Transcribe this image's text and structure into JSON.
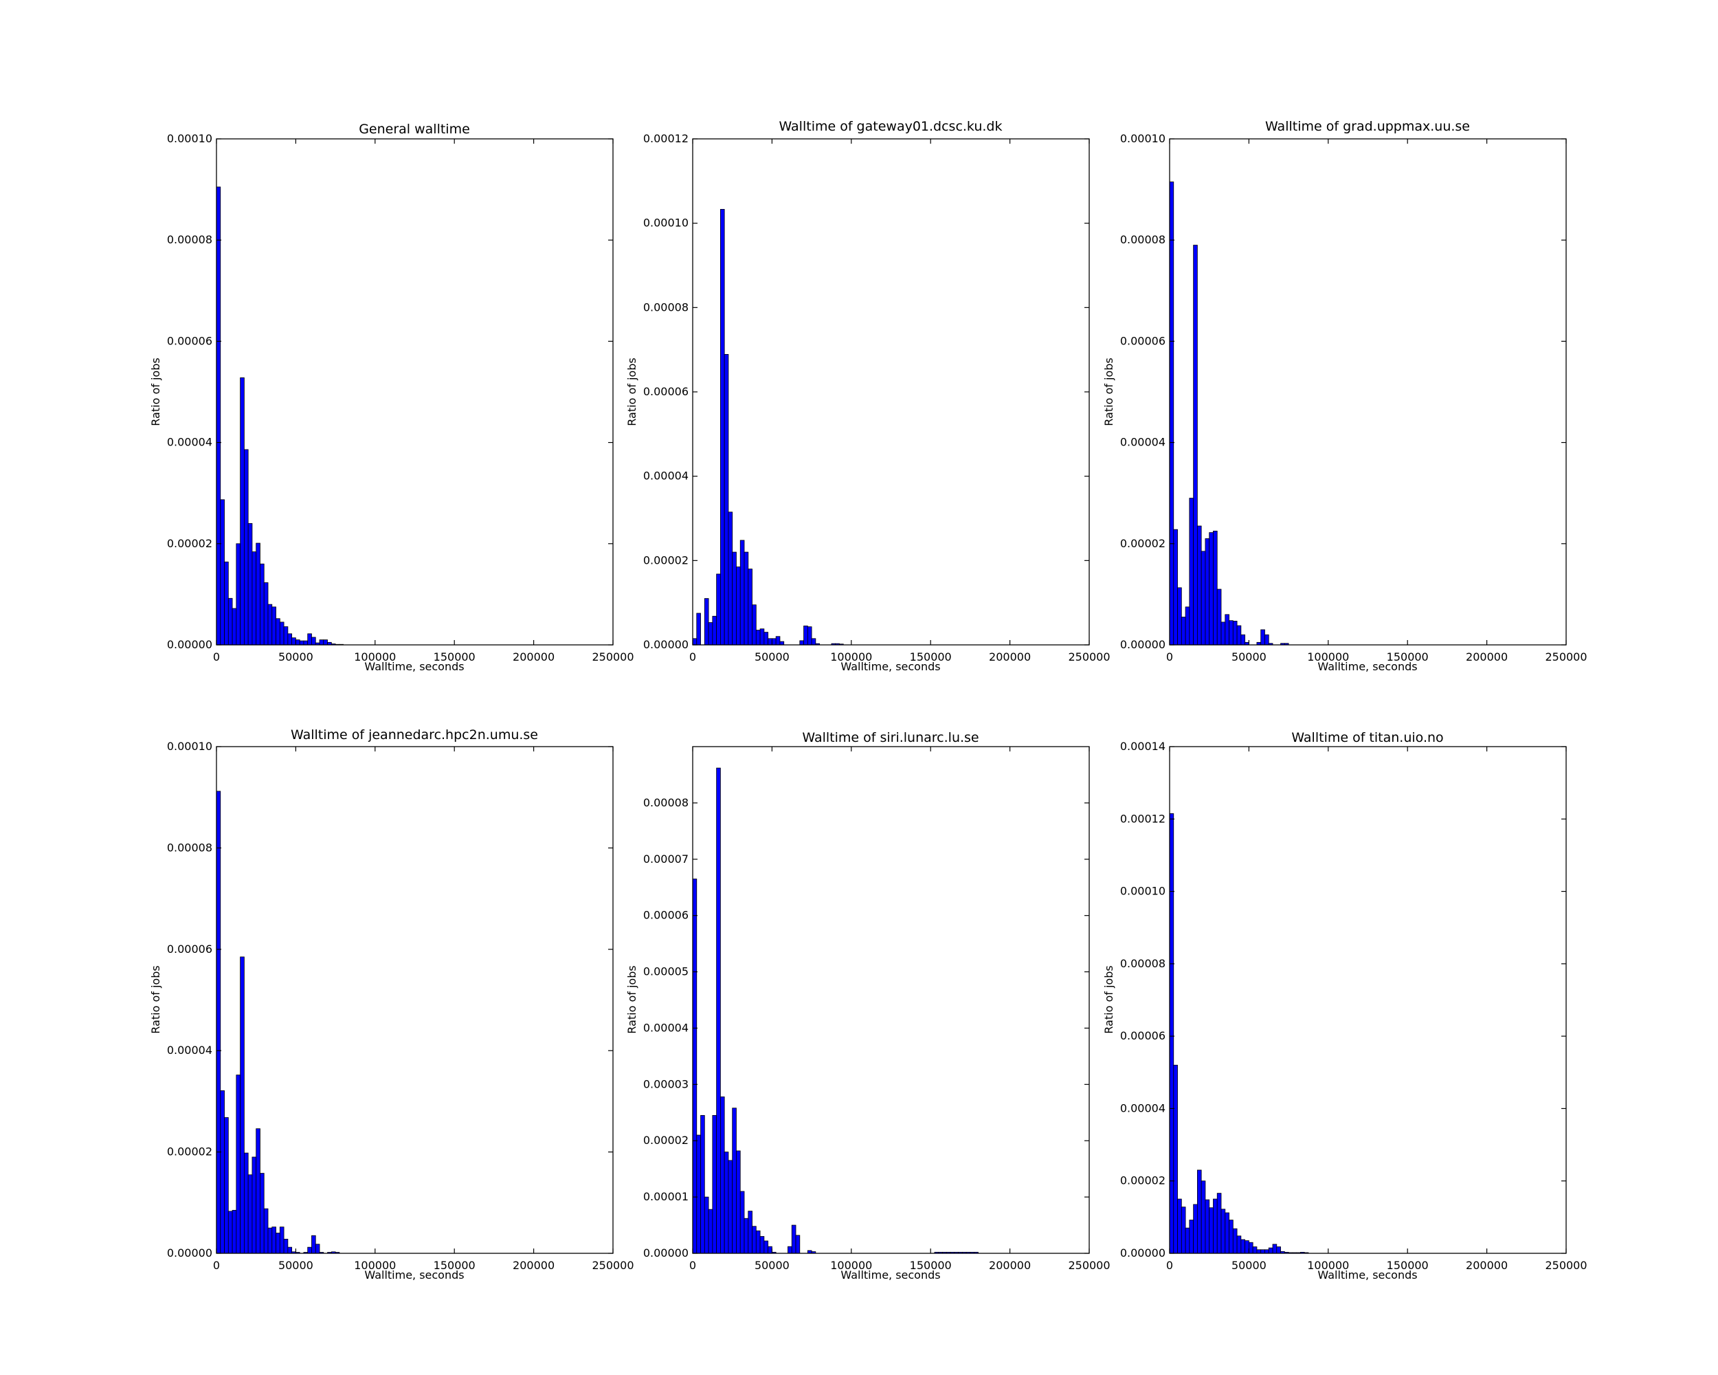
{
  "figure": {
    "background": "#ffffff",
    "bar_fill": "#0000ff",
    "bar_edge": "#000000"
  },
  "chart_data": [
    {
      "type": "bar",
      "title": "General walltime",
      "xlabel": "Walltime, seconds",
      "ylabel": "Ratio of jobs",
      "xlim": [
        0,
        250000
      ],
      "ylim": [
        0,
        0.0001
      ],
      "xticks": [
        "0",
        "50000",
        "100000",
        "150000",
        "200000",
        "250000"
      ],
      "yticks": [
        "0.00000",
        "0.00002",
        "0.00004",
        "0.00006",
        "0.00008",
        "0.00010"
      ],
      "bin_width": 2500,
      "values": [
        9.05e-05,
        2.87e-05,
        1.64e-05,
        9.2e-06,
        7.2e-06,
        2e-05,
        5.28e-05,
        3.86e-05,
        2.4e-05,
        1.84e-05,
        2.01e-05,
        1.6e-05,
        1.23e-05,
        8e-06,
        7.5e-06,
        5.2e-06,
        4.5e-06,
        3.6e-06,
        2.2e-06,
        1.4e-06,
        1e-06,
        8e-07,
        8e-07,
        2.2e-06,
        1.5e-06,
        4e-07,
        1e-06,
        1e-06,
        5e-07,
        2e-07,
        1e-07,
        1e-07
      ]
    },
    {
      "type": "bar",
      "title": "Walltime of gateway01.dcsc.ku.dk",
      "xlabel": "Walltime, seconds",
      "ylabel": "Ratio of jobs",
      "xlim": [
        0,
        250000
      ],
      "ylim": [
        0,
        0.00012
      ],
      "xticks": [
        "0",
        "50000",
        "100000",
        "150000",
        "200000",
        "250000"
      ],
      "yticks": [
        "0.00000",
        "0.00002",
        "0.00004",
        "0.00006",
        "0.00008",
        "0.00010",
        "0.00012"
      ],
      "bin_width": 2500,
      "values": [
        1.5e-06,
        7.5e-06,
        0,
        1.1e-05,
        5.3e-06,
        6.8e-06,
        1.68e-05,
        0.0001033,
        6.89e-05,
        3.15e-05,
        2.2e-05,
        1.85e-05,
        2.48e-05,
        2.2e-05,
        1.8e-05,
        9.5e-06,
        3.5e-06,
        3.8e-06,
        3e-06,
        1.5e-06,
        1.5e-06,
        2e-06,
        8e-07,
        0,
        0,
        0,
        0,
        1e-06,
        4.5e-06,
        4.3e-06,
        1.5e-06,
        3e-07,
        0,
        0,
        0,
        3e-07,
        3e-07,
        2e-07
      ]
    },
    {
      "type": "bar",
      "title": "Walltime of grad.uppmax.uu.se",
      "xlabel": "Walltime, seconds",
      "ylabel": "Ratio of jobs",
      "xlim": [
        0,
        250000
      ],
      "ylim": [
        0,
        0.0001
      ],
      "xticks": [
        "0",
        "50000",
        "100000",
        "150000",
        "200000",
        "250000"
      ],
      "yticks": [
        "0.00000",
        "0.00002",
        "0.00004",
        "0.00006",
        "0.00008",
        "0.00010"
      ],
      "bin_width": 2500,
      "values": [
        9.15e-05,
        2.28e-05,
        1.13e-05,
        5.5e-06,
        7.5e-06,
        2.9e-05,
        7.9e-05,
        2.35e-05,
        1.85e-05,
        2.1e-05,
        2.22e-05,
        2.25e-05,
        1.1e-05,
        4.5e-06,
        6e-06,
        4.8e-06,
        4.7e-06,
        3.8e-06,
        2e-06,
        5e-07,
        0,
        0,
        5e-07,
        3e-06,
        2e-06,
        3e-07,
        0,
        0,
        3e-07,
        3e-07
      ]
    },
    {
      "type": "bar",
      "title": "Walltime of jeannedarc.hpc2n.umu.se",
      "xlabel": "Walltime, seconds",
      "ylabel": "Ratio of jobs",
      "xlim": [
        0,
        250000
      ],
      "ylim": [
        0,
        0.0001
      ],
      "xticks": [
        "0",
        "50000",
        "100000",
        "150000",
        "200000",
        "250000"
      ],
      "yticks": [
        "0.00000",
        "0.00002",
        "0.00004",
        "0.00006",
        "0.00008",
        "0.00010"
      ],
      "bin_width": 2500,
      "values": [
        9.12e-05,
        3.21e-05,
        2.68e-05,
        8.3e-06,
        8.5e-06,
        3.52e-05,
        5.85e-05,
        1.98e-05,
        1.55e-05,
        1.9e-05,
        2.46e-05,
        1.58e-05,
        8.8e-06,
        5e-06,
        5.2e-06,
        4e-06,
        5.2e-06,
        2.8e-06,
        1.2e-06,
        3e-07,
        2e-07,
        0,
        2e-07,
        1.2e-06,
        3.5e-06,
        1.8e-06,
        2e-07,
        0,
        2e-07,
        3e-07,
        2e-07
      ]
    },
    {
      "type": "bar",
      "title": "Walltime of siri.lunarc.lu.se",
      "xlabel": "Walltime, seconds",
      "ylabel": "Ratio of jobs",
      "xlim": [
        0,
        250000
      ],
      "ylim": [
        0,
        9e-05
      ],
      "xticks": [
        "0",
        "50000",
        "100000",
        "150000",
        "200000",
        "250000"
      ],
      "yticks": [
        "0.00000",
        "0.00001",
        "0.00002",
        "0.00003",
        "0.00004",
        "0.00005",
        "0.00006",
        "0.00007",
        "0.00008"
      ],
      "bin_width": 2500,
      "values": [
        6.65e-05,
        2.1e-05,
        2.45e-05,
        1e-05,
        7.8e-06,
        2.45e-05,
        8.62e-05,
        2.78e-05,
        1.8e-05,
        1.65e-05,
        2.58e-05,
        1.82e-05,
        1.1e-05,
        6.2e-06,
        7.5e-06,
        4.8e-06,
        4e-06,
        3e-06,
        2.2e-06,
        1.2e-06,
        2e-07,
        0,
        0,
        0,
        1.2e-06,
        5e-06,
        3.2e-06,
        0,
        0,
        5e-07,
        3e-07,
        0,
        0,
        0,
        0,
        0,
        0,
        0,
        0,
        0,
        0,
        0,
        0,
        0,
        0,
        0,
        0,
        0,
        0,
        0,
        0,
        0,
        0,
        0,
        0,
        0,
        0,
        0,
        0,
        0,
        0,
        2e-07,
        2e-07,
        2e-07,
        2e-07,
        2e-07,
        2e-07,
        2e-07,
        2e-07,
        2e-07,
        2e-07,
        2e-07
      ]
    },
    {
      "type": "bar",
      "title": "Walltime of titan.uio.no",
      "xlabel": "Walltime, seconds",
      "ylabel": "Ratio of jobs",
      "xlim": [
        0,
        250000
      ],
      "ylim": [
        0,
        0.00014
      ],
      "xticks": [
        "0",
        "50000",
        "100000",
        "150000",
        "200000",
        "250000"
      ],
      "yticks": [
        "0.00000",
        "0.00002",
        "0.00004",
        "0.00006",
        "0.00008",
        "0.00010",
        "0.00012",
        "0.00014"
      ],
      "bin_width": 2500,
      "values": [
        0.0001215,
        5.2e-05,
        1.5e-05,
        1.28e-05,
        7e-06,
        9.2e-06,
        1.35e-05,
        2.3e-05,
        2e-05,
        1.48e-05,
        1.26e-05,
        1.5e-05,
        1.66e-05,
        1.22e-05,
        1.12e-05,
        9.2e-06,
        6.8e-06,
        4.8e-06,
        3.8e-06,
        3.5e-06,
        3e-06,
        1.8e-06,
        1e-06,
        1e-06,
        1e-06,
        1.5e-06,
        2.5e-06,
        1.8e-06,
        5e-07,
        3e-07,
        2e-07,
        2e-07,
        2e-07,
        3e-07,
        2e-07
      ]
    }
  ]
}
